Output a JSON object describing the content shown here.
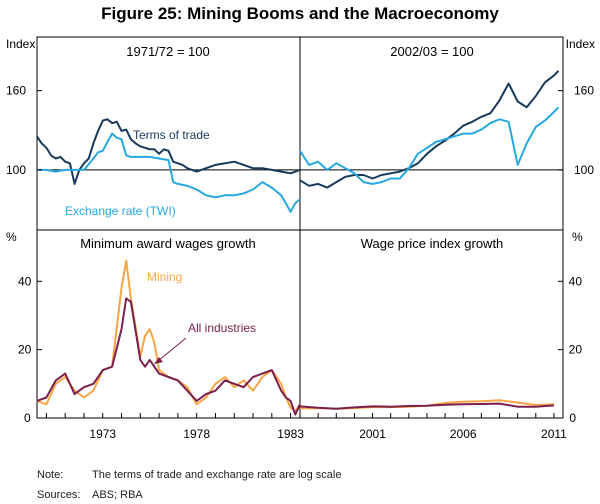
{
  "chart_data": [
    {
      "type": "line",
      "title": "Figure 25: Mining Booms and the Macroeconomy",
      "panel": "top-left",
      "subtitle": "1971/72 = 100",
      "ylabel": "Index",
      "scale": "log",
      "ylim": [
        70,
        220
      ],
      "yticks": [
        100,
        160
      ],
      "xlim": [
        1969.5,
        1983.5
      ],
      "series": [
        {
          "name": "Terms of trade",
          "color": "#173a5c",
          "x": [
            1969.5,
            1969.75,
            1970,
            1970.25,
            1970.5,
            1970.75,
            1971,
            1971.25,
            1971.5,
            1971.75,
            1972,
            1972.25,
            1972.5,
            1972.75,
            1973,
            1973.25,
            1973.5,
            1973.75,
            1974,
            1974.25,
            1974.5,
            1974.75,
            1975,
            1975.25,
            1975.5,
            1975.75,
            1976,
            1976.25,
            1976.5,
            1976.75,
            1977,
            1977.25,
            1977.5,
            1977.75,
            1978,
            1978.5,
            1979,
            1979.5,
            1980,
            1980.5,
            1981,
            1981.5,
            1982,
            1982.5,
            1983,
            1983.5
          ],
          "values": [
            122,
            117,
            114,
            109,
            107,
            108,
            105,
            104,
            92,
            100,
            104,
            107,
            117,
            126,
            134,
            135,
            132,
            133,
            126,
            127,
            120,
            117,
            115,
            114,
            113,
            113,
            110,
            113,
            112,
            105,
            104,
            103,
            101,
            100,
            99,
            101,
            103,
            104,
            105,
            103,
            101,
            101,
            100,
            99,
            98,
            100
          ]
        },
        {
          "name": "Exchange rate (TWI)",
          "color": "#26a9e0",
          "x": [
            1969.5,
            1970,
            1970.5,
            1971,
            1971.5,
            1972,
            1972.5,
            1972.75,
            1973,
            1973.25,
            1973.5,
            1973.75,
            1974,
            1974.25,
            1974.5,
            1974.75,
            1975,
            1975.5,
            1976,
            1976.5,
            1976.75,
            1977,
            1977.5,
            1978,
            1978.5,
            1979,
            1979.5,
            1980,
            1980.5,
            1981,
            1981.5,
            1982,
            1982.5,
            1983,
            1983.25,
            1983.5
          ],
          "values": [
            100,
            100,
            99,
            100,
            100,
            100,
            107,
            111,
            112,
            118,
            124,
            121,
            120,
            109,
            108,
            108,
            108,
            108,
            107,
            106,
            93,
            92,
            91,
            89,
            86,
            85,
            86,
            86,
            87,
            89,
            93,
            90,
            86,
            78,
            82,
            84
          ]
        }
      ],
      "annotations": [
        {
          "text": "Terms of trade",
          "series": "Terms of trade"
        },
        {
          "text": "Exchange rate (TWI)",
          "series": "Exchange rate (TWI)"
        }
      ]
    },
    {
      "type": "line",
      "panel": "top-right",
      "subtitle": "2002/03 = 100",
      "ylabel": "Index",
      "scale": "log",
      "ylim": [
        70,
        220
      ],
      "yticks": [
        100,
        160
      ],
      "xlim": [
        1997,
        2011.5
      ],
      "series": [
        {
          "name": "Terms of trade",
          "color": "#173a5c",
          "x": [
            1997,
            1997.5,
            1998,
            1998.5,
            1999,
            1999.5,
            2000,
            2000.5,
            2001,
            2001.5,
            2002,
            2002.5,
            2003,
            2003.5,
            2004,
            2004.5,
            2005,
            2005.5,
            2006,
            2006.5,
            2007,
            2007.5,
            2008,
            2008.5,
            2009,
            2009.5,
            2010,
            2010.5,
            2011,
            2011.25
          ],
          "values": [
            94,
            91,
            92,
            90,
            93,
            96,
            97,
            97,
            95,
            97,
            98,
            99,
            101,
            104,
            110,
            115,
            119,
            124,
            130,
            133,
            137,
            140,
            151,
            167,
            150,
            145,
            155,
            168,
            175,
            180
          ]
        },
        {
          "name": "Exchange rate (TWI)",
          "color": "#26a9e0",
          "x": [
            1997,
            1997.5,
            1998,
            1998.5,
            1999,
            1999.5,
            2000,
            2000.5,
            2001,
            2001.5,
            2002,
            2002.5,
            2003,
            2003.5,
            2004,
            2004.5,
            2005,
            2005.5,
            2006,
            2006.5,
            2007,
            2007.5,
            2008,
            2008.5,
            2009,
            2009.5,
            2010,
            2010.5,
            2011,
            2011.25
          ],
          "values": [
            112,
            103,
            105,
            100,
            104,
            101,
            98,
            93,
            92,
            93,
            95,
            95,
            101,
            110,
            114,
            118,
            120,
            122,
            124,
            124,
            127,
            132,
            135,
            133,
            103,
            117,
            129,
            134,
            141,
            145
          ]
        }
      ]
    },
    {
      "type": "line",
      "panel": "bottom-left",
      "subtitle": "Minimum award wages growth",
      "ylabel": "%",
      "ylim": [
        0,
        55
      ],
      "yticks": [
        0,
        20,
        40
      ],
      "xlim": [
        1969.5,
        1983.5
      ],
      "xticks": [
        1973,
        1978,
        1983
      ],
      "series": [
        {
          "name": "Mining",
          "color": "#f7a646",
          "x": [
            1969.5,
            1970,
            1970.5,
            1971,
            1971.5,
            1972,
            1972.5,
            1973,
            1973.5,
            1974,
            1974.25,
            1974.5,
            1975,
            1975.25,
            1975.5,
            1975.75,
            1976,
            1976.5,
            1977,
            1977.5,
            1978,
            1978.5,
            1979,
            1979.5,
            1980,
            1980.5,
            1981,
            1981.5,
            1982,
            1982.25,
            1982.5,
            1982.75,
            1983,
            1983.25,
            1983.5
          ],
          "values": [
            5,
            4,
            10,
            12,
            8,
            6,
            8,
            14,
            15,
            38,
            46,
            35,
            18,
            24,
            26,
            22,
            14,
            12,
            11,
            9,
            4,
            6,
            10,
            12,
            9,
            11,
            8,
            12,
            14,
            12,
            10,
            6,
            3,
            2,
            4
          ]
        },
        {
          "name": "All industries",
          "color": "#7b1f4d",
          "x": [
            1969.5,
            1970,
            1970.5,
            1971,
            1971.5,
            1972,
            1972.5,
            1973,
            1973.5,
            1974,
            1974.25,
            1974.5,
            1975,
            1975.25,
            1975.5,
            1976,
            1976.5,
            1977,
            1977.5,
            1978,
            1978.5,
            1979,
            1979.5,
            1980,
            1980.5,
            1981,
            1981.5,
            1982,
            1982.25,
            1982.5,
            1982.75,
            1983,
            1983.25,
            1983.5
          ],
          "values": [
            5,
            6,
            11,
            13,
            7,
            9,
            10,
            14,
            15,
            26,
            35,
            34,
            17,
            15,
            17,
            13,
            12,
            11,
            8,
            5,
            7,
            8,
            11,
            10,
            9,
            12,
            13,
            14,
            11,
            8,
            6,
            5,
            1,
            4
          ]
        }
      ],
      "annotations": [
        {
          "text": "Mining",
          "series": "Mining"
        },
        {
          "text": "All industries",
          "series": "All industries",
          "arrow": true
        }
      ]
    },
    {
      "type": "line",
      "panel": "bottom-right",
      "subtitle": "Wage price index growth",
      "ylabel": "%",
      "ylim": [
        0,
        55
      ],
      "yticks": [
        0,
        20,
        40
      ],
      "xlim": [
        1997,
        2011.5
      ],
      "xticks": [
        2001,
        2006,
        2011
      ],
      "series": [
        {
          "name": "Mining",
          "color": "#f7a646",
          "x": [
            1997,
            1998,
            1999,
            2000,
            2001,
            2002,
            2003,
            2004,
            2005,
            2006,
            2007,
            2008,
            2009,
            2010,
            2011
          ],
          "values": [
            2.8,
            2.9,
            2.7,
            2.9,
            3.2,
            3.2,
            3.3,
            3.6,
            4.4,
            4.8,
            4.9,
            5.2,
            4.5,
            3.8,
            4.0
          ]
        },
        {
          "name": "All industries",
          "color": "#7b1f4d",
          "x": [
            1997,
            1998,
            1999,
            2000,
            2001,
            2002,
            2003,
            2004,
            2005,
            2006,
            2007,
            2008,
            2009,
            2010,
            2011
          ],
          "values": [
            3.4,
            3.0,
            2.7,
            3.1,
            3.4,
            3.3,
            3.5,
            3.6,
            3.9,
            4.0,
            4.1,
            4.2,
            3.3,
            3.3,
            3.7
          ]
        }
      ]
    }
  ],
  "figure": {
    "title": "Figure 25: Mining Booms and the Macroeconomy",
    "left_axis_label_top": "Index",
    "right_axis_label_top": "Index",
    "left_axis_label_bottom": "%",
    "right_axis_label_bottom": "%"
  },
  "notes": {
    "note_label": "Note:",
    "note_text": "The terms of trade and exchange rate are log scale",
    "sources_label": "Sources:",
    "sources_text": "ABS; RBA"
  }
}
